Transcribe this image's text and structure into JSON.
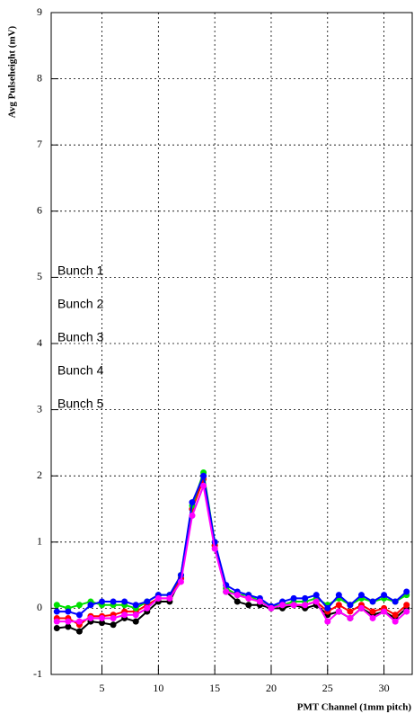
{
  "chart_data": {
    "type": "line",
    "xlabel": "PMT Channel (1mm pitch)",
    "ylabel": "Avg Pulseheight (mV)",
    "x": [
      1,
      2,
      3,
      4,
      5,
      6,
      7,
      8,
      9,
      10,
      11,
      12,
      13,
      14,
      15,
      16,
      17,
      18,
      19,
      20,
      21,
      22,
      23,
      24,
      25,
      26,
      27,
      28,
      29,
      30,
      31,
      32
    ],
    "series": [
      {
        "name": "Bunch 1",
        "color": "#000000",
        "values": [
          -0.3,
          -0.28,
          -0.35,
          -0.2,
          -0.22,
          -0.25,
          -0.15,
          -0.2,
          -0.05,
          0.1,
          0.1,
          0.45,
          1.5,
          2.0,
          0.95,
          0.25,
          0.1,
          0.05,
          0.05,
          0.0,
          0.0,
          0.05,
          0.0,
          0.05,
          -0.1,
          -0.05,
          -0.15,
          0.0,
          -0.1,
          -0.05,
          -0.15,
          0.0
        ]
      },
      {
        "name": "Bunch 2",
        "color": "#ff0000",
        "values": [
          -0.15,
          -0.15,
          -0.25,
          -0.12,
          -0.12,
          -0.1,
          -0.05,
          -0.05,
          0.05,
          0.15,
          0.15,
          0.45,
          1.5,
          1.95,
          0.95,
          0.3,
          0.2,
          0.15,
          0.1,
          0.02,
          0.05,
          0.05,
          0.05,
          0.1,
          -0.05,
          0.05,
          -0.05,
          0.05,
          -0.05,
          0.0,
          -0.1,
          0.05
        ]
      },
      {
        "name": "Bunch 3",
        "color": "#00e000",
        "values": [
          0.05,
          0.0,
          0.05,
          0.1,
          0.05,
          0.05,
          0.05,
          0.0,
          0.1,
          0.2,
          0.2,
          0.5,
          1.55,
          2.05,
          1.0,
          0.3,
          0.2,
          0.2,
          0.1,
          0.03,
          0.05,
          0.1,
          0.1,
          0.15,
          0.05,
          0.15,
          0.05,
          0.15,
          0.1,
          0.15,
          0.1,
          0.2
        ]
      },
      {
        "name": "Bunch 4",
        "color": "#0000ff",
        "values": [
          -0.05,
          -0.05,
          -0.1,
          0.05,
          0.1,
          0.1,
          0.1,
          0.05,
          0.1,
          0.2,
          0.2,
          0.5,
          1.6,
          2.0,
          1.0,
          0.35,
          0.25,
          0.2,
          0.15,
          0.03,
          0.1,
          0.15,
          0.15,
          0.2,
          0.0,
          0.2,
          0.05,
          0.2,
          0.1,
          0.2,
          0.1,
          0.25
        ]
      },
      {
        "name": "Bunch 5",
        "color": "#ff00ff",
        "values": [
          -0.2,
          -0.2,
          -0.2,
          -0.15,
          -0.15,
          -0.15,
          -0.1,
          -0.1,
          0.0,
          0.15,
          0.15,
          0.4,
          1.4,
          1.85,
          0.9,
          0.25,
          0.2,
          0.15,
          0.1,
          0.0,
          0.05,
          0.05,
          0.05,
          0.1,
          -0.2,
          -0.05,
          -0.15,
          0.0,
          -0.15,
          -0.05,
          -0.2,
          -0.05
        ]
      }
    ],
    "xlim": [
      0.5,
      32.5
    ],
    "xticks": [
      5,
      10,
      15,
      20,
      25,
      30
    ],
    "ylim": [
      -1,
      9
    ],
    "yticks": [
      -1,
      0,
      1,
      2,
      3,
      4,
      5,
      6,
      7,
      8,
      9
    ],
    "grid": true,
    "legend": "center-left"
  }
}
